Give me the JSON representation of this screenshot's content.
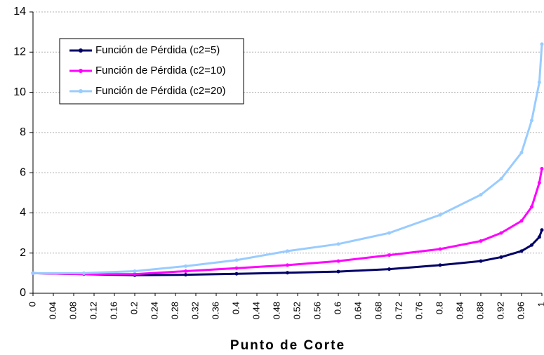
{
  "chart_data": {
    "type": "line",
    "x_label": "Punto de Corte",
    "x": [
      0,
      0.1,
      0.2,
      0.3,
      0.4,
      0.5,
      0.6,
      0.7,
      0.8,
      0.88,
      0.92,
      0.96,
      0.98,
      0.995,
      1
    ],
    "series": [
      {
        "name": "Función de Pérdida (c2=5)",
        "color": "#000066",
        "values": [
          1.0,
          0.95,
          0.9,
          0.92,
          0.97,
          1.02,
          1.08,
          1.2,
          1.4,
          1.6,
          1.8,
          2.1,
          2.4,
          2.8,
          3.15
        ]
      },
      {
        "name": "Función de Pérdida (c2=10)",
        "color": "#ff00ff",
        "values": [
          1.0,
          0.95,
          0.95,
          1.1,
          1.25,
          1.4,
          1.6,
          1.9,
          2.2,
          2.6,
          3.0,
          3.6,
          4.3,
          5.5,
          6.2
        ]
      },
      {
        "name": "Función de Pérdida (c2=20)",
        "color": "#99ccff",
        "values": [
          1.0,
          1.0,
          1.1,
          1.35,
          1.65,
          2.1,
          2.45,
          3.0,
          3.9,
          4.9,
          5.7,
          7.0,
          8.6,
          10.5,
          12.4
        ]
      }
    ],
    "xlim": [
      0,
      1
    ],
    "xticks": [
      0,
      0.04,
      0.08,
      0.12,
      0.16,
      0.2,
      0.24,
      0.28,
      0.32,
      0.36,
      0.4,
      0.44,
      0.48,
      0.52,
      0.56,
      0.6,
      0.64,
      0.68,
      0.72,
      0.76,
      0.8,
      0.84,
      0.88,
      0.92,
      0.96,
      1
    ],
    "ylim": [
      0,
      14
    ],
    "yticks": [
      0,
      2,
      4,
      6,
      8,
      10,
      12,
      14
    ],
    "grid": true
  }
}
